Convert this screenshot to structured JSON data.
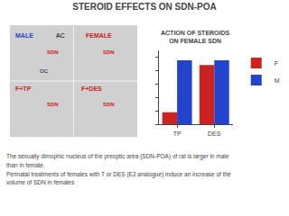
{
  "chart_data": {
    "type": "bar",
    "title": "STEROID EFFECTS ON SDN-POA",
    "subtitle": "ACTION OF STEROIDS\nON FEMALE SDN",
    "categories": [
      "TP",
      "DES"
    ],
    "series": [
      {
        "name": "F",
        "color": "#cc2222",
        "values": [
          0.18,
          0.88
        ]
      },
      {
        "name": "M",
        "color": "#2244cc",
        "values": [
          0.95,
          0.95
        ]
      }
    ],
    "ylim": [
      0,
      1.1
    ],
    "yticks": [
      0,
      0.2,
      0.4,
      0.6,
      0.8,
      1.0
    ],
    "tick_labels": "x",
    "grid": false,
    "legend": "upper right",
    "annotations": [
      {
        "text": "MALE",
        "color": "#2244cc"
      },
      {
        "text": "AC",
        "color": "#000000"
      },
      {
        "text": "FEMALE",
        "color": "#cc2222"
      },
      {
        "text": "F+TP",
        "color": "#cc2222"
      },
      {
        "text": "F+DES",
        "color": "#cc2222"
      },
      {
        "text": "SDN",
        "color": "#cc2222"
      },
      {
        "text": "SDN",
        "color": "#cc2222"
      },
      {
        "text": "SDN",
        "color": "#cc2222"
      },
      {
        "text": "SDN",
        "color": "#cc2222"
      },
      {
        "text": "OC",
        "color": "#000000"
      },
      "The sexually dimophic nucleus of the preoptic area (SDN-POA) of rat is larger in male",
      "than in female.",
      "Perinatal treatments of females with T or DES (E2 analogue) induce an increase of the",
      "volume of SDN in females"
    ]
  }
}
